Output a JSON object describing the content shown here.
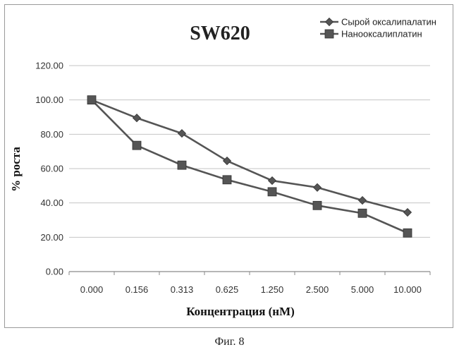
{
  "chart_data": {
    "type": "line",
    "title": "SW620",
    "xlabel": "Концентрация (нМ)",
    "ylabel": "% роста",
    "categories": [
      "0.000",
      "0.156",
      "0.313",
      "0.625",
      "1.250",
      "2.500",
      "5.000",
      "10.000"
    ],
    "ylim": [
      0,
      120
    ],
    "yticks": [
      "0.00",
      "20.00",
      "40.00",
      "60.00",
      "80.00",
      "100.00",
      "120.00"
    ],
    "grid": true,
    "legend": "top-right",
    "series": [
      {
        "name": "Сырой оксалипалатин",
        "marker": "diamond",
        "color": "#555555",
        "values": [
          100,
          89.5,
          80.5,
          64.5,
          53,
          49,
          41.5,
          34.5
        ]
      },
      {
        "name": "Нанооксалиплатин",
        "marker": "square",
        "color": "#555555",
        "values": [
          100,
          73.5,
          62,
          53.5,
          46.5,
          38.5,
          34,
          22.5
        ]
      }
    ]
  },
  "caption": "Фиг. 8"
}
